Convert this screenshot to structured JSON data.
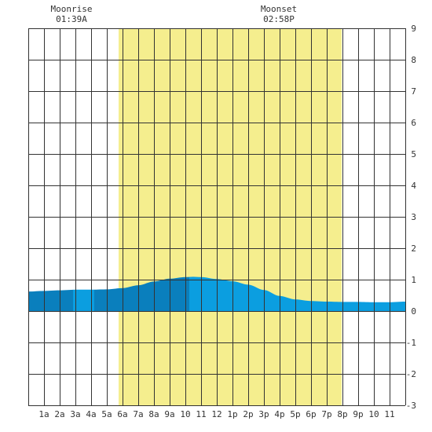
{
  "moon": {
    "rise_label": "Moonrise",
    "rise_time": "01:39A",
    "set_label": "Moonset",
    "set_time": "02:58P"
  },
  "chart_data": {
    "type": "area",
    "title": "",
    "xlabel": "",
    "ylabel": "",
    "x_tick_labels": [
      "1a",
      "2a",
      "3a",
      "4a",
      "5a",
      "6a",
      "7a",
      "8a",
      "9a",
      "10",
      "11",
      "12",
      "1p",
      "2p",
      "3p",
      "4p",
      "5p",
      "6p",
      "7p",
      "8p",
      "9p",
      "10",
      "11"
    ],
    "y_tick_labels": [
      "-3",
      "-2",
      "-1",
      "0",
      "1",
      "2",
      "3",
      "4",
      "5",
      "6",
      "7",
      "8",
      "9"
    ],
    "xlim": [
      0,
      24
    ],
    "ylim": [
      -3,
      9
    ],
    "grid": true,
    "daylight": {
      "start_hour": 5.75,
      "end_hour": 19.95
    },
    "shade_boundaries_hours": [
      2.85,
      4.2,
      10.25
    ],
    "series": [
      {
        "x": [
          0,
          1,
          2,
          3,
          4,
          5,
          6,
          7,
          8,
          9,
          10,
          10.5,
          11,
          12,
          13,
          14,
          15,
          16,
          17,
          18,
          19,
          20,
          21,
          22,
          23,
          24
        ],
        "y": [
          0.62,
          0.64,
          0.66,
          0.68,
          0.68,
          0.69,
          0.73,
          0.82,
          0.94,
          1.03,
          1.08,
          1.09,
          1.08,
          1.02,
          0.95,
          0.84,
          0.67,
          0.48,
          0.37,
          0.32,
          0.3,
          0.29,
          0.29,
          0.28,
          0.28,
          0.3
        ]
      }
    ]
  },
  "colors": {
    "daylight": "#f5ee8e",
    "tide_dark": "#0a7fbd",
    "tide_light": "#0b9ee0",
    "grid": "#333333"
  }
}
